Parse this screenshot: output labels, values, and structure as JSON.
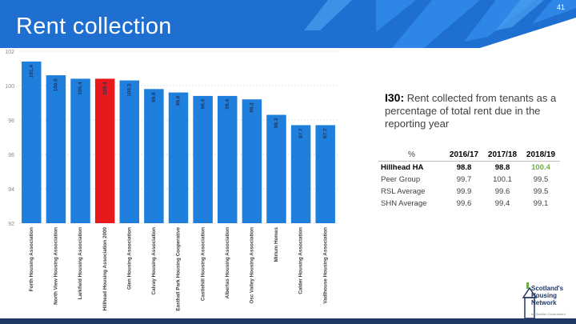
{
  "header": {
    "title": "Rent collection",
    "page_number": "41"
  },
  "indicator": {
    "code": "I30:",
    "description": "Rent collected from tenants as a percentage of total rent due in the reporting year"
  },
  "comparison_table": {
    "unit_header": "%",
    "years": [
      "2016/17",
      "2017/18",
      "2018/19"
    ],
    "rows": [
      {
        "label": "Hillhead HA",
        "values": [
          "98.8",
          "98.8",
          "100.4"
        ]
      },
      {
        "label": "Peer Group",
        "values": [
          "99.7",
          "100.1",
          "99.5"
        ]
      },
      {
        "label": "RSL Average",
        "values": [
          "99.9",
          "99.6",
          "99.5"
        ]
      },
      {
        "label": "SHN Average",
        "values": [
          "99.6",
          "99.4",
          "99.1"
        ]
      }
    ]
  },
  "logo": {
    "text_lines": [
      "Scotland's",
      "Housing",
      "Network"
    ],
    "tagline": "by Scottish Government"
  },
  "colors": {
    "banner_blue": "#1f6fd0",
    "bar_blue": "#1f7fdc",
    "highlight_red": "#e8191c",
    "highlight_green": "#70ad47",
    "footer_navy": "#1f3864"
  },
  "chart_data": {
    "type": "bar",
    "categories": [
      "Forth Housing Association",
      "North View Housing Association",
      "Larkfield Housing Association",
      "Hillhead Housing Association 2000",
      "Glen Housing Association",
      "Calvay Housing Association",
      "Easthall Park Housing Cooperative",
      "Castlehill Housing Association",
      "Albertas Housing Association",
      "Osc Valley Housing Association",
      "Mirium Homes",
      "Calder Housing Association",
      "Vadlhouse Housing Association"
    ],
    "values": [
      101.4,
      100.6,
      100.4,
      100.4,
      100.3,
      99.8,
      99.6,
      99.4,
      99.4,
      99.2,
      98.3,
      97.7,
      97.7
    ],
    "data_labels": [
      "101.4",
      "100.6",
      "100.4",
      "100.4",
      "100.3",
      "99.8",
      "99.6",
      "99.4",
      "99.4",
      "99.2",
      "98.3",
      "97.7",
      "97.7"
    ],
    "highlight_index": 3,
    "yticks": [
      "102",
      "100",
      "98",
      "96",
      "94",
      "92"
    ],
    "ylim": [
      92,
      102
    ],
    "grid": true,
    "legend": "none"
  }
}
